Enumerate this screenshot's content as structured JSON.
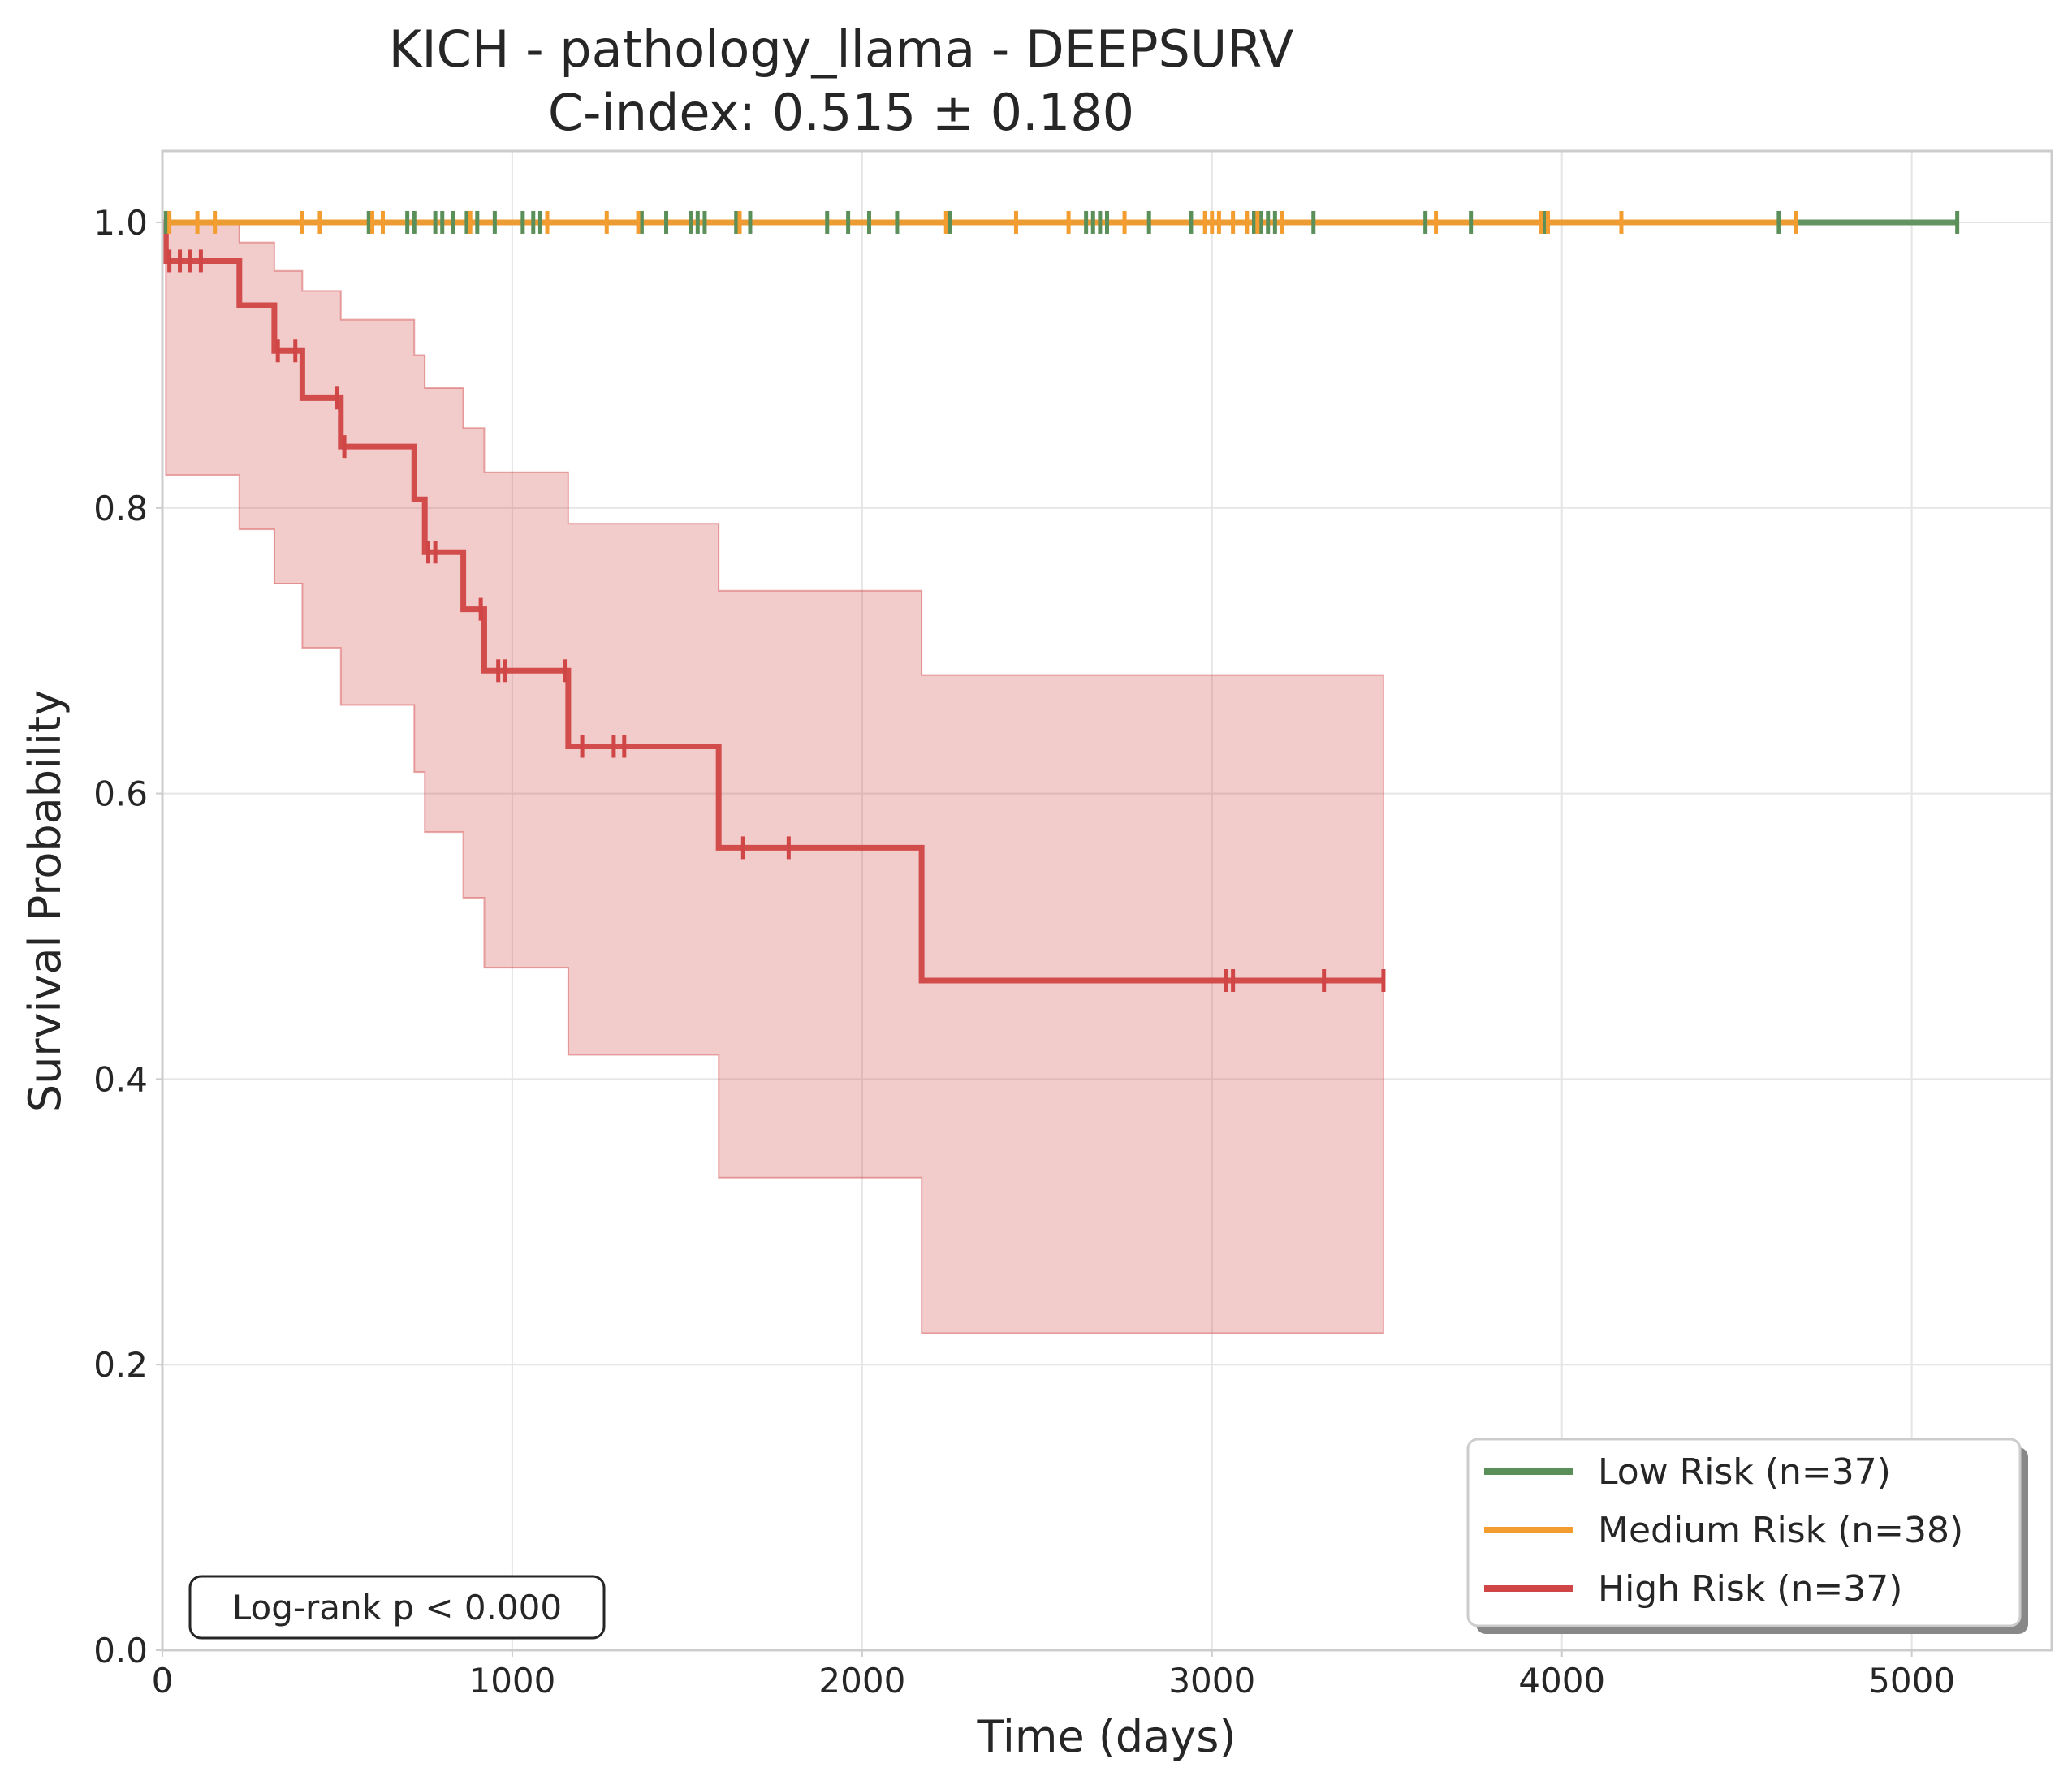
{
  "chart_data": {
    "type": "line",
    "title": "KICH - pathology_llama - DEEPSURV",
    "subtitle": "C-index: 0.515 ± 0.180",
    "xlabel": "Time (days)",
    "ylabel": "Survival Probability",
    "xlim": [
      0,
      5400
    ],
    "ylim": [
      0,
      1.05
    ],
    "x_ticks": [
      0,
      1000,
      2000,
      3000,
      4000,
      5000
    ],
    "x_tick_labels": [
      "0",
      "1000",
      "2000",
      "3000",
      "4000",
      "5000"
    ],
    "y_ticks": [
      0,
      0.2,
      0.4,
      0.6,
      0.8,
      1.0
    ],
    "y_tick_labels": [
      "0.0",
      "0.2",
      "0.4",
      "0.6",
      "0.8",
      "1.0"
    ],
    "grid": true,
    "legend_position": "bottom-right",
    "annotation": "Log-rank p < 0.000",
    "series": [
      {
        "name": "Low Risk (n=37)",
        "color": "#5a8f5a",
        "x": [
          0,
          5130
        ],
        "y": [
          1.0,
          1.0
        ],
        "censored_x": [
          10,
          590,
          700,
          720,
          780,
          800,
          830,
          870,
          900,
          950,
          1030,
          1060,
          1080,
          1370,
          1440,
          1510,
          1530,
          1550,
          1640,
          1680,
          1900,
          1960,
          2020,
          2100,
          2250,
          2640,
          2660,
          2680,
          2700,
          2820,
          2940,
          3120,
          3140,
          3160,
          3180,
          3290,
          3610,
          3740,
          3950,
          4620,
          5130
        ]
      },
      {
        "name": "Medium Risk (n=38)",
        "color": "#f39c2f",
        "x": [
          0,
          4670
        ],
        "y": [
          1.0,
          1.0
        ],
        "censored_x": [
          20,
          100,
          150,
          400,
          450,
          600,
          630,
          880,
          1100,
          1270,
          1360,
          1650,
          2240,
          2440,
          2590,
          2750,
          2980,
          3000,
          3020,
          3060,
          3100,
          3130,
          3200,
          3640,
          3940,
          3960,
          4170,
          4670
        ]
      },
      {
        "name": "High Risk (n=37)",
        "color": "#d04545",
        "x": [
          0,
          10,
          220,
          320,
          400,
          510,
          720,
          750,
          860,
          920,
          1160,
          1590,
          2170,
          3490
        ],
        "y": [
          1.0,
          0.973,
          0.942,
          0.91,
          0.877,
          0.843,
          0.806,
          0.769,
          0.729,
          0.686,
          0.633,
          0.562,
          0.469,
          0.469
        ],
        "ci_lower": [
          1.0,
          0.823,
          0.785,
          0.747,
          0.702,
          0.662,
          0.615,
          0.573,
          0.527,
          0.478,
          0.417,
          0.331,
          0.222,
          0.222
        ],
        "ci_upper": [
          1.0,
          1.0,
          0.986,
          0.966,
          0.952,
          0.932,
          0.907,
          0.884,
          0.856,
          0.825,
          0.789,
          0.742,
          0.683,
          0.683
        ],
        "censored_x": [
          20,
          50,
          80,
          110,
          330,
          380,
          500,
          520,
          760,
          780,
          910,
          960,
          980,
          1150,
          1200,
          1290,
          1320,
          1660,
          1790,
          3040,
          3060,
          3320,
          3490
        ]
      }
    ]
  }
}
